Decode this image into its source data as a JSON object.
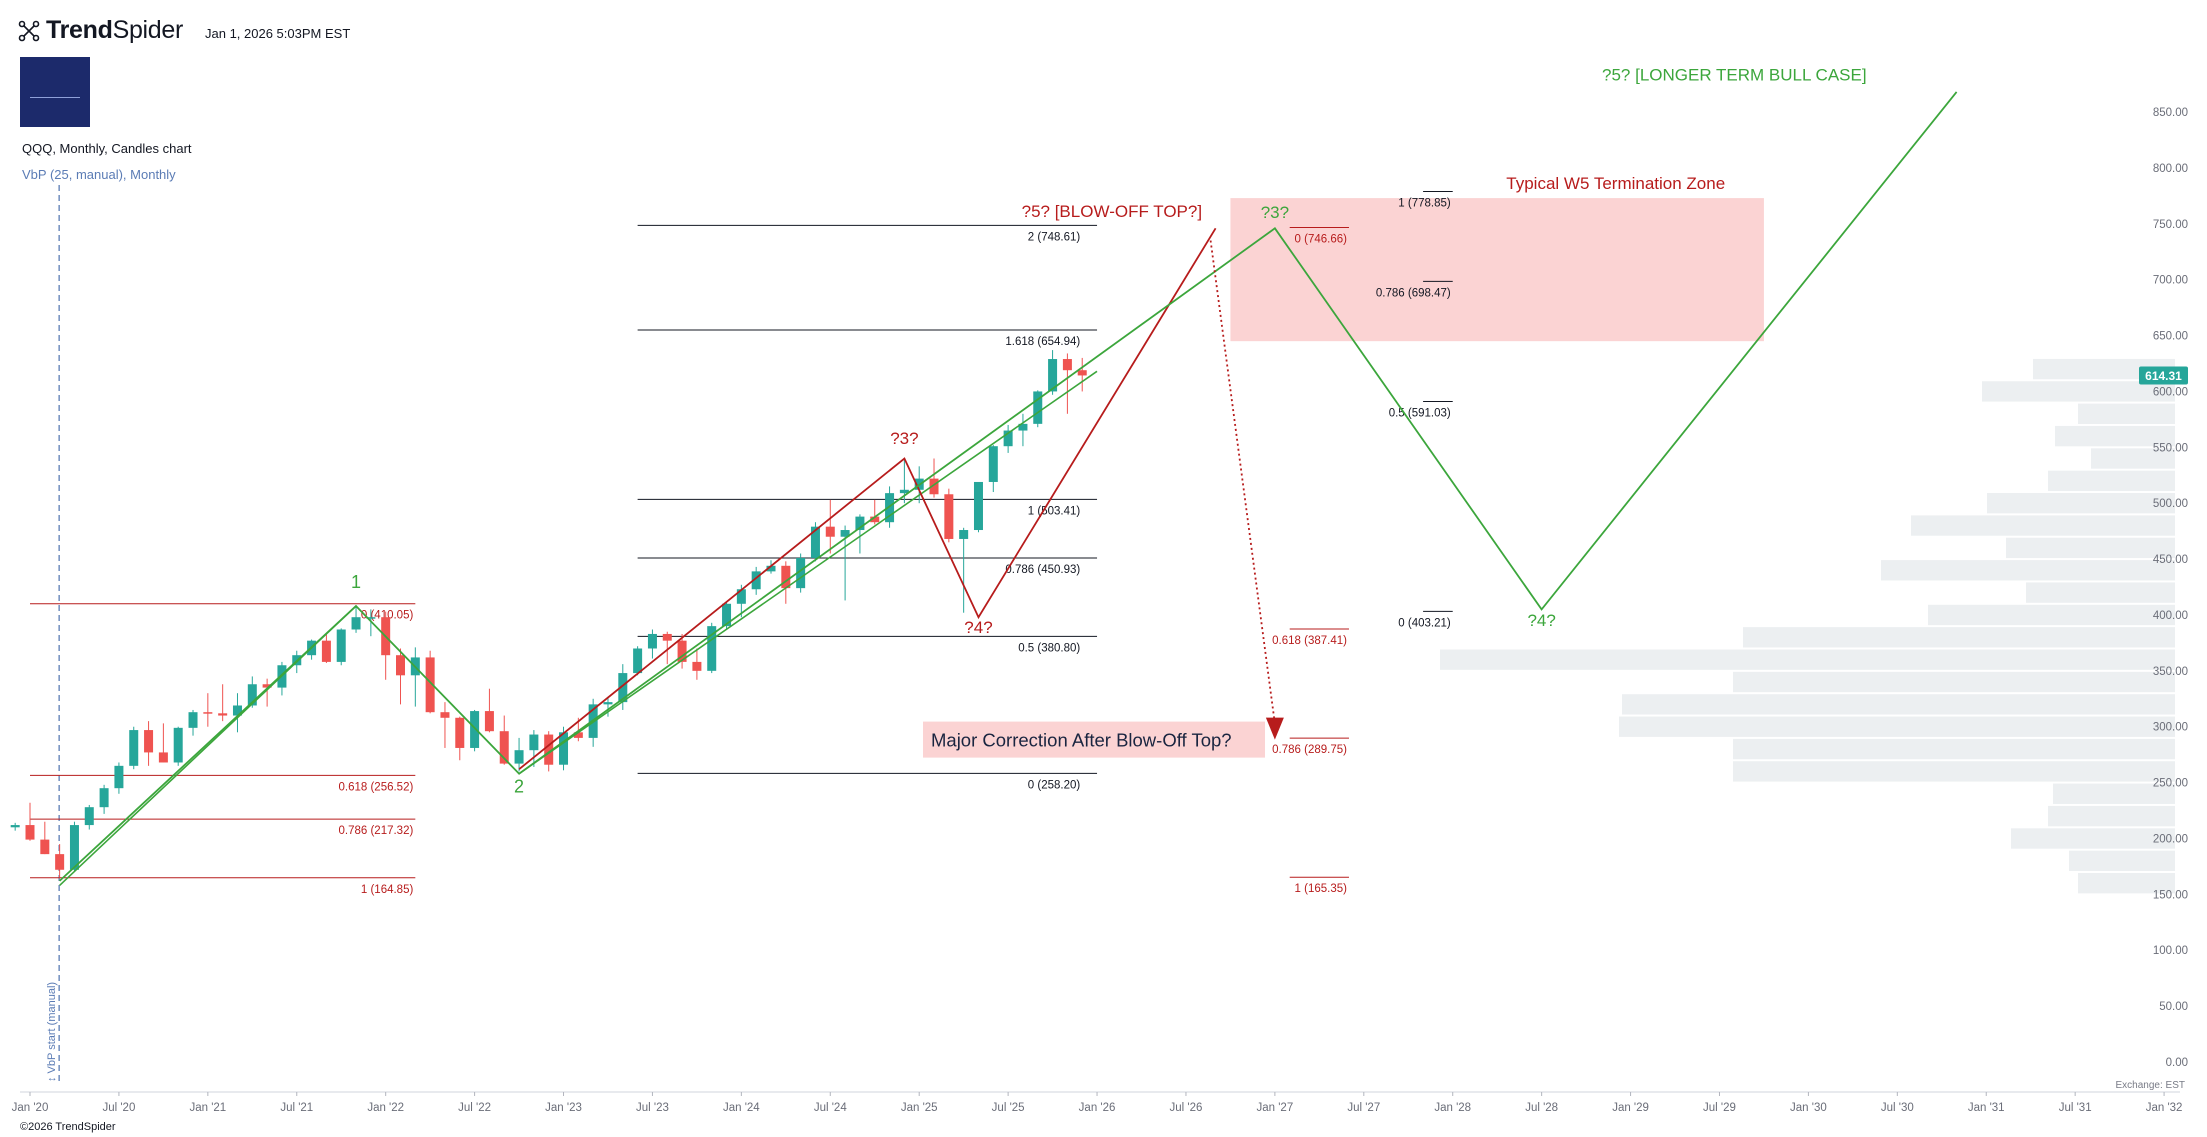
{
  "header": {
    "brand_part1": "Trend",
    "brand_part2": "Spider",
    "timestamp": "Jan 1, 2026 5:03PM EST",
    "symbol_line": "QQQ, Monthly, Candles chart",
    "vbp_line": "VbP (25, manual), Monthly",
    "copyright": "©2026 TrendSpider",
    "exchange": "Exchange: EST",
    "vbp_start_label": "↕ VbP start (manual)"
  },
  "colors": {
    "up": "#26a69a",
    "down": "#ef5350",
    "green_path": "#3ca63c",
    "red_path": "#b71c1c",
    "fib_red": "#b71c1c",
    "fib_black": "#131722",
    "zone_fill": "#fbd3d3",
    "vbp_fill": "#eceff1",
    "price_badge": "#26a69a",
    "vbp_start_line": "#5b7cb5"
  },
  "chart_data": {
    "type": "candlestick",
    "ylim": [
      0,
      860
    ],
    "yticks": [
      0,
      50,
      100,
      150,
      200,
      250,
      300,
      350,
      400,
      450,
      500,
      550,
      600,
      650,
      700,
      750,
      800,
      850
    ],
    "ytick_labels": [
      "0.00",
      "50.00",
      "100.00",
      "150.00",
      "200.00",
      "250.00",
      "300.00",
      "350.00",
      "400.00",
      "450.00",
      "500.00",
      "550.00",
      "600.00",
      "650.00",
      "700.00",
      "750.00",
      "800.00",
      "850.00"
    ],
    "xticks": [
      "2020-01",
      "2020-07",
      "2021-01",
      "2021-07",
      "2022-01",
      "2022-07",
      "2023-01",
      "2023-07",
      "2024-01",
      "2024-07",
      "2025-01",
      "2025-07",
      "2026-01",
      "2026-07",
      "2027-01",
      "2027-07",
      "2028-01",
      "2028-07",
      "2029-01",
      "2029-07",
      "2030-01",
      "2030-07",
      "2031-01",
      "2031-07",
      "2032-01"
    ],
    "xtick_labels": [
      "Jan '20",
      "Jul '20",
      "Jan '21",
      "Jul '21",
      "Jan '22",
      "Jul '22",
      "Jan '23",
      "Jul '23",
      "Jan '24",
      "Jul '24",
      "Jan '25",
      "Jul '25",
      "Jan '26",
      "Jul '26",
      "Jan '27",
      "Jul '27",
      "Jan '28",
      "Jul '28",
      "Jan '29",
      "Jul '29",
      "Jan '30",
      "Jul '30",
      "Jan '31",
      "Jul '31",
      "Jan '32"
    ],
    "last_price": "614.31",
    "candles": [
      {
        "t": "2019-12",
        "o": 210,
        "h": 214,
        "l": 207,
        "c": 212
      },
      {
        "t": "2020-01",
        "o": 212,
        "h": 232,
        "l": 198,
        "c": 199
      },
      {
        "t": "2020-02",
        "o": 199,
        "h": 215,
        "l": 186,
        "c": 186
      },
      {
        "t": "2020-03",
        "o": 186,
        "h": 195,
        "l": 165,
        "c": 172
      },
      {
        "t": "2020-04",
        "o": 172,
        "h": 215,
        "l": 170,
        "c": 212
      },
      {
        "t": "2020-05",
        "o": 212,
        "h": 230,
        "l": 208,
        "c": 228
      },
      {
        "t": "2020-06",
        "o": 228,
        "h": 248,
        "l": 222,
        "c": 245
      },
      {
        "t": "2020-07",
        "o": 245,
        "h": 268,
        "l": 240,
        "c": 265
      },
      {
        "t": "2020-08",
        "o": 265,
        "h": 300,
        "l": 262,
        "c": 297
      },
      {
        "t": "2020-09",
        "o": 297,
        "h": 305,
        "l": 265,
        "c": 277
      },
      {
        "t": "2020-10",
        "o": 277,
        "h": 303,
        "l": 268,
        "c": 268
      },
      {
        "t": "2020-11",
        "o": 268,
        "h": 300,
        "l": 265,
        "c": 299
      },
      {
        "t": "2020-12",
        "o": 299,
        "h": 315,
        "l": 292,
        "c": 313
      },
      {
        "t": "2021-01",
        "o": 313,
        "h": 330,
        "l": 300,
        "c": 312
      },
      {
        "t": "2021-02",
        "o": 312,
        "h": 338,
        "l": 305,
        "c": 310
      },
      {
        "t": "2021-03",
        "o": 310,
        "h": 330,
        "l": 295,
        "c": 319
      },
      {
        "t": "2021-04",
        "o": 319,
        "h": 345,
        "l": 317,
        "c": 338
      },
      {
        "t": "2021-05",
        "o": 338,
        "h": 343,
        "l": 318,
        "c": 335
      },
      {
        "t": "2021-06",
        "o": 335,
        "h": 358,
        "l": 328,
        "c": 355
      },
      {
        "t": "2021-07",
        "o": 355,
        "h": 368,
        "l": 348,
        "c": 364
      },
      {
        "t": "2021-08",
        "o": 364,
        "h": 378,
        "l": 360,
        "c": 377
      },
      {
        "t": "2021-09",
        "o": 377,
        "h": 383,
        "l": 357,
        "c": 358
      },
      {
        "t": "2021-10",
        "o": 358,
        "h": 388,
        "l": 355,
        "c": 387
      },
      {
        "t": "2021-11",
        "o": 387,
        "h": 408,
        "l": 384,
        "c": 398
      },
      {
        "t": "2021-12",
        "o": 398,
        "h": 405,
        "l": 381,
        "c": 398
      },
      {
        "t": "2022-01",
        "o": 398,
        "h": 403,
        "l": 342,
        "c": 364
      },
      {
        "t": "2022-02",
        "o": 364,
        "h": 370,
        "l": 320,
        "c": 346
      },
      {
        "t": "2022-03",
        "o": 346,
        "h": 371,
        "l": 318,
        "c": 362
      },
      {
        "t": "2022-04",
        "o": 362,
        "h": 368,
        "l": 312,
        "c": 313
      },
      {
        "t": "2022-05",
        "o": 313,
        "h": 322,
        "l": 281,
        "c": 308
      },
      {
        "t": "2022-06",
        "o": 308,
        "h": 309,
        "l": 270,
        "c": 281
      },
      {
        "t": "2022-07",
        "o": 281,
        "h": 315,
        "l": 278,
        "c": 314
      },
      {
        "t": "2022-08",
        "o": 314,
        "h": 334,
        "l": 295,
        "c": 296
      },
      {
        "t": "2022-09",
        "o": 296,
        "h": 310,
        "l": 266,
        "c": 267
      },
      {
        "t": "2022-10",
        "o": 267,
        "h": 290,
        "l": 260,
        "c": 279
      },
      {
        "t": "2022-11",
        "o": 279,
        "h": 297,
        "l": 264,
        "c": 293
      },
      {
        "t": "2022-12",
        "o": 293,
        "h": 296,
        "l": 260,
        "c": 266
      },
      {
        "t": "2023-01",
        "o": 266,
        "h": 300,
        "l": 261,
        "c": 295
      },
      {
        "t": "2023-02",
        "o": 295,
        "h": 308,
        "l": 287,
        "c": 290
      },
      {
        "t": "2023-03",
        "o": 290,
        "h": 325,
        "l": 282,
        "c": 320
      },
      {
        "t": "2023-04",
        "o": 320,
        "h": 326,
        "l": 309,
        "c": 322
      },
      {
        "t": "2023-05",
        "o": 322,
        "h": 356,
        "l": 315,
        "c": 348
      },
      {
        "t": "2023-06",
        "o": 348,
        "h": 372,
        "l": 346,
        "c": 370
      },
      {
        "t": "2023-07",
        "o": 370,
        "h": 387,
        "l": 361,
        "c": 383
      },
      {
        "t": "2023-08",
        "o": 383,
        "h": 385,
        "l": 356,
        "c": 377
      },
      {
        "t": "2023-09",
        "o": 377,
        "h": 383,
        "l": 352,
        "c": 358
      },
      {
        "t": "2023-10",
        "o": 358,
        "h": 370,
        "l": 342,
        "c": 350
      },
      {
        "t": "2023-11",
        "o": 350,
        "h": 393,
        "l": 348,
        "c": 390
      },
      {
        "t": "2023-12",
        "o": 390,
        "h": 412,
        "l": 387,
        "c": 410
      },
      {
        "t": "2024-01",
        "o": 410,
        "h": 427,
        "l": 398,
        "c": 423
      },
      {
        "t": "2024-02",
        "o": 423,
        "h": 443,
        "l": 418,
        "c": 439
      },
      {
        "t": "2024-03",
        "o": 439,
        "h": 449,
        "l": 437,
        "c": 444
      },
      {
        "t": "2024-04",
        "o": 444,
        "h": 448,
        "l": 410,
        "c": 424
      },
      {
        "t": "2024-05",
        "o": 424,
        "h": 455,
        "l": 420,
        "c": 451
      },
      {
        "t": "2024-06",
        "o": 451,
        "h": 483,
        "l": 448,
        "c": 479
      },
      {
        "t": "2024-07",
        "o": 479,
        "h": 503,
        "l": 455,
        "c": 470
      },
      {
        "t": "2024-08",
        "o": 470,
        "h": 480,
        "l": 413,
        "c": 476
      },
      {
        "t": "2024-09",
        "o": 476,
        "h": 490,
        "l": 455,
        "c": 488
      },
      {
        "t": "2024-10",
        "o": 488,
        "h": 503,
        "l": 481,
        "c": 483
      },
      {
        "t": "2024-11",
        "o": 483,
        "h": 515,
        "l": 478,
        "c": 509
      },
      {
        "t": "2024-12",
        "o": 509,
        "h": 539,
        "l": 500,
        "c": 512
      },
      {
        "t": "2025-01",
        "o": 512,
        "h": 533,
        "l": 500,
        "c": 522
      },
      {
        "t": "2025-02",
        "o": 522,
        "h": 540,
        "l": 505,
        "c": 508
      },
      {
        "t": "2025-03",
        "o": 508,
        "h": 513,
        "l": 465,
        "c": 468
      },
      {
        "t": "2025-04",
        "o": 468,
        "h": 478,
        "l": 402,
        "c": 476
      },
      {
        "t": "2025-05",
        "o": 476,
        "h": 518,
        "l": 474,
        "c": 519
      },
      {
        "t": "2025-06",
        "o": 519,
        "h": 552,
        "l": 510,
        "c": 551
      },
      {
        "t": "2025-07",
        "o": 551,
        "h": 570,
        "l": 545,
        "c": 565
      },
      {
        "t": "2025-08",
        "o": 565,
        "h": 580,
        "l": 551,
        "c": 571
      },
      {
        "t": "2025-09",
        "o": 571,
        "h": 601,
        "l": 568,
        "c": 600
      },
      {
        "t": "2025-10",
        "o": 600,
        "h": 637,
        "l": 597,
        "c": 629
      },
      {
        "t": "2025-11",
        "o": 629,
        "h": 634,
        "l": 580,
        "c": 619
      },
      {
        "t": "2025-12",
        "o": 619,
        "h": 630,
        "l": 600,
        "c": 614.31
      }
    ],
    "fib_sets": [
      {
        "color": "red",
        "x0": "2020-01",
        "x1": "2022-03",
        "label_x": "2022-03",
        "levels": [
          {
            "price": 410.05,
            "label": "0 (410.05)"
          },
          {
            "price": 256.52,
            "label": "0.618 (256.52)"
          },
          {
            "price": 217.32,
            "label": "0.786 (217.32)"
          },
          {
            "price": 164.85,
            "label": "1 (164.85)"
          }
        ]
      },
      {
        "color": "black",
        "x0": "2023-06",
        "x1": "2026-01",
        "label_x": "2025-12",
        "levels": [
          {
            "price": 748.61,
            "label": "2 (748.61)"
          },
          {
            "price": 654.94,
            "label": "1.618 (654.94)"
          },
          {
            "price": 503.41,
            "label": "1 (503.41)"
          },
          {
            "price": 450.93,
            "label": "0.786 (450.93)"
          },
          {
            "price": 380.8,
            "label": "0.5 (380.80)"
          },
          {
            "price": 258.2,
            "label": "0 (258.20)"
          }
        ]
      },
      {
        "color": "red",
        "x0": "2027-02",
        "x1": "2027-06",
        "label_x": "2027-06",
        "levels": [
          {
            "price": 746.66,
            "label": "0 (746.66)"
          },
          {
            "price": 387.41,
            "label": "0.618 (387.41)"
          },
          {
            "price": 289.75,
            "label": "0.786 (289.75)"
          },
          {
            "price": 165.35,
            "label": "1 (165.35)"
          }
        ]
      },
      {
        "color": "black",
        "x0": "2027-11",
        "x1": "2028-01",
        "label_x": "2028-01",
        "levels": [
          {
            "price": 778.85,
            "label": "1 (778.85)"
          },
          {
            "price": 698.47,
            "label": "0.786 (698.47)"
          },
          {
            "price": 591.03,
            "label": "0.5 (591.03)"
          },
          {
            "price": 403.21,
            "label": "0 (403.21)"
          }
        ]
      }
    ],
    "green_path": [
      [
        "2020-03",
        162
      ],
      [
        "2021-11",
        408
      ],
      [
        "2022-10",
        258
      ],
      [
        "2027-01",
        746
      ],
      [
        "2028-07",
        405
      ],
      [
        "2030-11",
        868
      ]
    ],
    "green_path_2": [
      [
        "2022-10",
        258
      ],
      [
        "2026-01",
        618
      ]
    ],
    "green_path_3": [
      [
        "2020-03",
        158
      ],
      [
        "2021-11",
        408
      ]
    ],
    "red_path": [
      [
        "2022-10",
        262
      ],
      [
        "2024-12",
        540
      ],
      [
        "2025-05",
        398
      ],
      [
        "2026-09",
        746
      ]
    ],
    "red_dotted_arrow": [
      [
        "2026-09",
        735
      ],
      [
        "2027-01",
        292
      ]
    ],
    "termination_zone": {
      "x0": "2026-10",
      "x1": "2029-10",
      "y0": 645,
      "y1": 773
    },
    "vbp_bars": [
      {
        "price": 160,
        "width": 0.097
      },
      {
        "price": 180,
        "width": 0.106
      },
      {
        "price": 200,
        "width": 0.164
      },
      {
        "price": 220,
        "width": 0.127
      },
      {
        "price": 240,
        "width": 0.122
      },
      {
        "price": 260,
        "width": 0.442
      },
      {
        "price": 280,
        "width": 0.442
      },
      {
        "price": 300,
        "width": 0.556
      },
      {
        "price": 320,
        "width": 0.553
      },
      {
        "price": 340,
        "width": 0.442
      },
      {
        "price": 360,
        "width": 0.735
      },
      {
        "price": 380,
        "width": 0.432
      },
      {
        "price": 400,
        "width": 0.247
      },
      {
        "price": 420,
        "width": 0.149
      },
      {
        "price": 440,
        "width": 0.294
      },
      {
        "price": 460,
        "width": 0.169
      },
      {
        "price": 480,
        "width": 0.264
      },
      {
        "price": 500,
        "width": 0.188
      },
      {
        "price": 520,
        "width": 0.127
      },
      {
        "price": 540,
        "width": 0.084
      },
      {
        "price": 560,
        "width": 0.12
      },
      {
        "price": 580,
        "width": 0.097
      },
      {
        "price": 600,
        "width": 0.193
      },
      {
        "price": 620,
        "width": 0.142
      }
    ],
    "annotations": [
      {
        "text": "1",
        "x": "2021-11",
        "y": 424,
        "color": "green"
      },
      {
        "text": "2",
        "x": "2022-10",
        "y": 241,
        "color": "green"
      },
      {
        "text": "?3?",
        "x": "2024-12",
        "y": 553,
        "color": "red"
      },
      {
        "text": "?4?",
        "x": "2025-05",
        "y": 384,
        "color": "red"
      },
      {
        "text": "?5? [BLOW-OFF TOP?]",
        "x": "2026-02",
        "y": 756,
        "color": "red"
      },
      {
        "text": "?3?",
        "x": "2027-01",
        "y": 755,
        "color": "green"
      },
      {
        "text": "?4?",
        "x": "2028-07",
        "y": 390,
        "color": "green"
      },
      {
        "text": "?5? [LONGER TERM BULL CASE]",
        "x": "2029-08",
        "y": 878,
        "color": "green"
      },
      {
        "text": "Typical W5 Termination Zone",
        "x": "2028-12",
        "y": 781,
        "color": "red"
      }
    ],
    "callout": {
      "text": "Major Correction After Blow-Off Top?",
      "x": "2025-05",
      "y": 284
    }
  }
}
